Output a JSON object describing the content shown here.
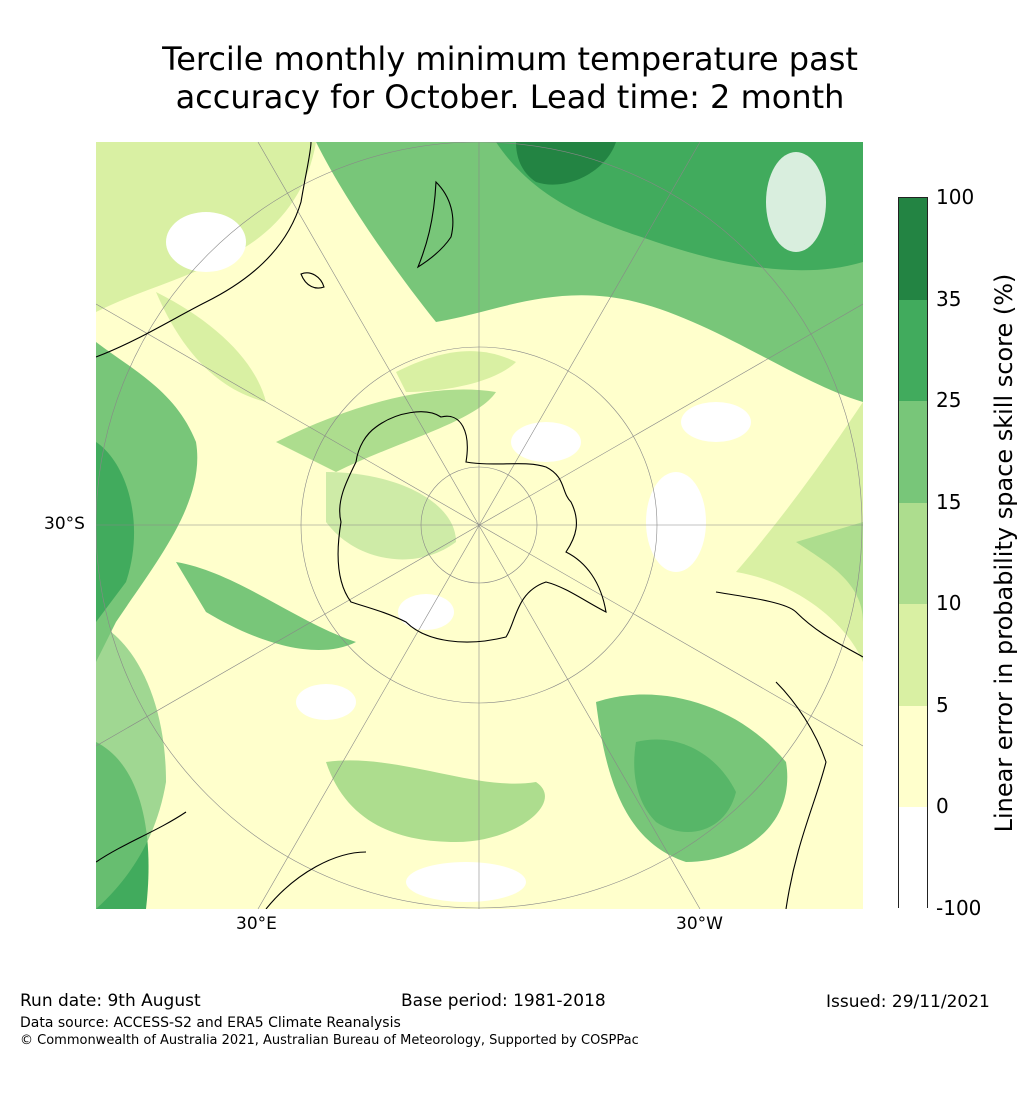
{
  "title": {
    "line1": "Tercile monthly minimum temperature past",
    "line2": "accuracy for October. Lead time: 2 month"
  },
  "map": {
    "projection": "south-polar-stereographic",
    "tick_labels": {
      "left_lat": "30°S",
      "bottom_left_lon": "30°E",
      "bottom_right_lon": "30°W"
    },
    "colors": {
      "land_ocean_background": "#ffffcc",
      "coastline": "#000000",
      "gridline": "#888888"
    }
  },
  "colorbar": {
    "label": "Linear error in probability space skill score (%)",
    "ticks": [
      "100",
      "35",
      "25",
      "15",
      "10",
      "5",
      "0",
      "-100"
    ],
    "bins": [
      {
        "from": 35,
        "to": 100,
        "color": "#238443"
      },
      {
        "from": 25,
        "to": 35,
        "color": "#41ab5d"
      },
      {
        "from": 15,
        "to": 25,
        "color": "#78c679"
      },
      {
        "from": 10,
        "to": 15,
        "color": "#addd8e"
      },
      {
        "from": 5,
        "to": 10,
        "color": "#d9f0a3"
      },
      {
        "from": 0,
        "to": 5,
        "color": "#ffffcc"
      },
      {
        "from": -100,
        "to": 0,
        "color": "#ffffff"
      }
    ]
  },
  "footer": {
    "run_date": "Run date: 9th August",
    "base_period": "Base period: 1981-2018",
    "issued": "Issued: 29/11/2021",
    "data_source": "Data source: ACCESS-S2 and ERA5 Climate Reanalysis",
    "copyright": "© Commonwealth of Australia 2021, Australian Bureau of Meteorology, Supported by COSPPac"
  }
}
